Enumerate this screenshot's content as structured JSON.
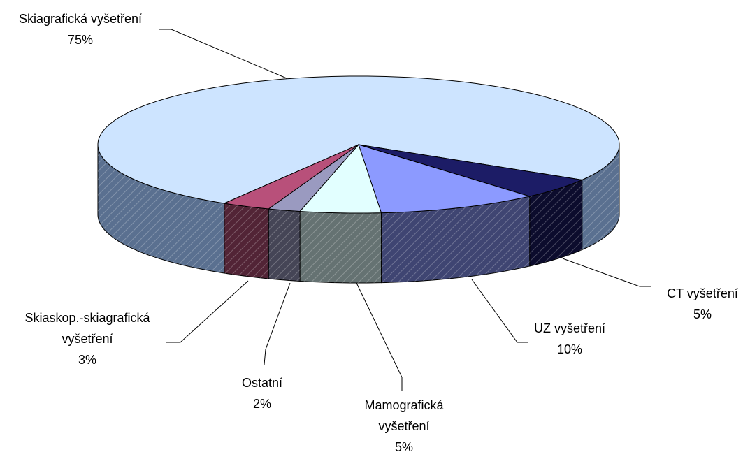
{
  "chart_data": {
    "type": "pie3d",
    "categories": [
      "Skiagrafická vyšetření",
      "CT vyšetření",
      "UZ vyšetření",
      "Mamografická\nvyšetření",
      "Ostatní",
      "Skiaskop.-skiagrafická\nvyšetření"
    ],
    "values": [
      75,
      5,
      10,
      5,
      2,
      3
    ],
    "value_labels": [
      "75%",
      "5%",
      "10%",
      "5%",
      "2%",
      "3%"
    ],
    "colors": [
      "#cde4ff",
      "#1c1c66",
      "#8c9aff",
      "#e2ffff",
      "#9a9ac0",
      "#b8507a"
    ]
  }
}
